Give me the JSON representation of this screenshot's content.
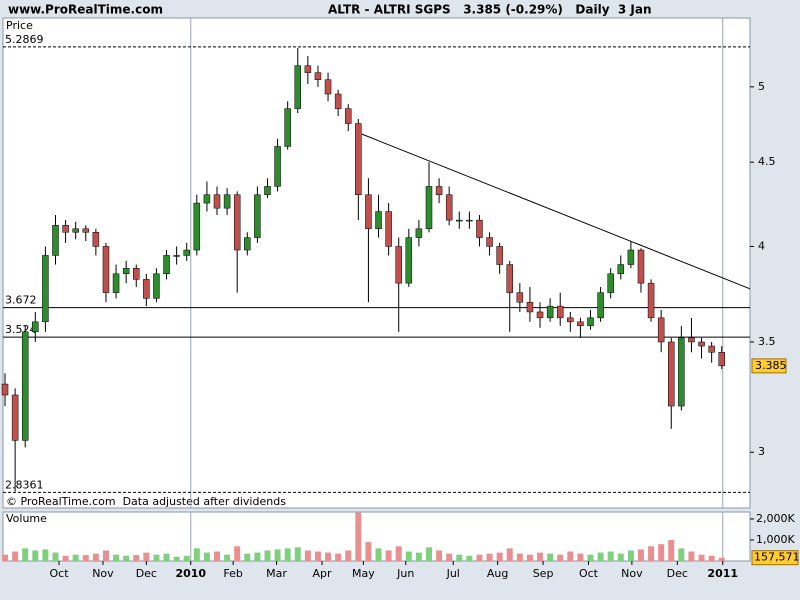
{
  "chart_data": [
    {
      "type": "candlestick",
      "source": "www.ProRealTime.com",
      "title": "ALTR - ALTRI SGPS   3.385 (-0.29%)   Daily  3 Jan",
      "y_label": "Price",
      "note": "© ProRealTime.com  Data adjusted after dividends",
      "log_scale": true,
      "xlim": [
        -0.2,
        73.8
      ],
      "ylim": [
        2.775,
        5.505
      ],
      "yticks": [
        3,
        3.5,
        4,
        4.5,
        5
      ],
      "xticks": [
        {
          "value": 5.35,
          "label": "Oct"
        },
        {
          "value": 9.7,
          "label": "Nov"
        },
        {
          "value": 14.0,
          "label": "Dec"
        },
        {
          "value": 18.4,
          "label": "2010",
          "bold": true
        },
        {
          "value": 22.6,
          "label": "Feb"
        },
        {
          "value": 26.9,
          "label": "Mar"
        },
        {
          "value": 31.4,
          "label": "Apr"
        },
        {
          "value": 35.5,
          "label": "May"
        },
        {
          "value": 39.7,
          "label": "Jun"
        },
        {
          "value": 44.4,
          "label": "Jul"
        },
        {
          "value": 48.8,
          "label": "Aug"
        },
        {
          "value": 53.3,
          "label": "Sep"
        },
        {
          "value": 57.8,
          "label": "Oct"
        },
        {
          "value": 62.1,
          "label": "Nov"
        },
        {
          "value": 66.6,
          "label": "Dec"
        },
        {
          "value": 71.1,
          "label": "2011",
          "bold": true
        }
      ],
      "up_color": "#2e8b2e",
      "down_color": "#c0504d",
      "wick_color": "#000000",
      "open": [
        3.3,
        3.25,
        3.05,
        3.55,
        3.6,
        3.95,
        4.12,
        4.08,
        4.1,
        4.08,
        4.0,
        3.75,
        3.85,
        3.88,
        3.82,
        3.72,
        3.85,
        3.95,
        3.95,
        3.98,
        4.25,
        4.3,
        4.22,
        4.3,
        3.98,
        4.05,
        4.3,
        4.35,
        4.6,
        4.85,
        5.15,
        5.1,
        5.05,
        4.95,
        4.85,
        4.75,
        4.3,
        4.1,
        4.2,
        4.0,
        3.8,
        4.05,
        4.1,
        4.35,
        4.3,
        4.15,
        4.15,
        4.15,
        4.05,
        4.0,
        3.9,
        3.75,
        3.7,
        3.65,
        3.62,
        3.68,
        3.62,
        3.6,
        3.58,
        3.62,
        3.75,
        3.85,
        3.9,
        3.98,
        3.8,
        3.62,
        3.5,
        3.2,
        3.52,
        3.5,
        3.48,
        3.45
      ],
      "high": [
        3.35,
        3.28,
        3.58,
        3.65,
        4.0,
        4.18,
        4.15,
        4.14,
        4.12,
        4.1,
        4.02,
        3.9,
        3.92,
        3.9,
        3.85,
        3.88,
        3.98,
        4.0,
        4.02,
        4.3,
        4.38,
        4.35,
        4.34,
        4.32,
        4.08,
        4.35,
        4.4,
        4.65,
        4.9,
        5.28,
        5.22,
        5.15,
        5.1,
        4.98,
        4.88,
        4.78,
        4.4,
        4.3,
        4.25,
        4.05,
        4.1,
        4.15,
        4.5,
        4.4,
        4.35,
        4.2,
        4.2,
        4.18,
        4.08,
        4.02,
        3.92,
        3.8,
        3.78,
        3.7,
        3.72,
        3.75,
        3.65,
        3.62,
        3.66,
        3.78,
        3.88,
        3.95,
        4.03,
        3.99,
        3.82,
        3.66,
        3.52,
        3.58,
        3.62,
        3.52,
        3.5,
        3.48
      ],
      "low": [
        3.2,
        2.84,
        3.02,
        3.5,
        3.55,
        3.9,
        4.02,
        4.04,
        4.03,
        3.95,
        3.7,
        3.72,
        3.8,
        3.78,
        3.68,
        3.7,
        3.82,
        3.9,
        3.92,
        3.95,
        4.2,
        4.18,
        4.18,
        3.75,
        3.95,
        4.02,
        4.28,
        4.32,
        4.58,
        4.82,
        5.02,
        5.0,
        4.9,
        4.8,
        4.7,
        4.15,
        3.7,
        4.05,
        3.95,
        3.55,
        3.78,
        4.0,
        4.08,
        4.25,
        4.12,
        4.1,
        4.1,
        4.0,
        3.95,
        3.85,
        3.55,
        3.65,
        3.6,
        3.57,
        3.6,
        3.58,
        3.55,
        3.52,
        3.56,
        3.6,
        3.72,
        3.82,
        3.88,
        3.75,
        3.6,
        3.45,
        3.1,
        3.18,
        3.45,
        3.42,
        3.4,
        3.37
      ],
      "close": [
        3.25,
        3.05,
        3.55,
        3.6,
        3.95,
        4.12,
        4.08,
        4.1,
        4.08,
        4.0,
        3.75,
        3.85,
        3.88,
        3.82,
        3.72,
        3.85,
        3.95,
        3.95,
        3.98,
        4.25,
        4.3,
        4.22,
        4.3,
        3.98,
        4.05,
        4.3,
        4.35,
        4.6,
        4.85,
        5.15,
        5.1,
        5.05,
        4.95,
        4.85,
        4.75,
        4.3,
        4.1,
        4.2,
        4.0,
        3.8,
        4.05,
        4.1,
        4.35,
        4.3,
        4.15,
        4.15,
        4.15,
        4.05,
        4.0,
        3.9,
        3.75,
        3.7,
        3.65,
        3.62,
        3.68,
        3.62,
        3.6,
        3.58,
        3.62,
        3.75,
        3.85,
        3.9,
        3.98,
        3.8,
        3.62,
        3.5,
        3.2,
        3.52,
        3.5,
        3.48,
        3.45,
        3.385
      ],
      "hlines": [
        {
          "value": 5.2869,
          "style": "dashed"
        },
        {
          "value": 3.672,
          "style": "solid"
        },
        {
          "value": 3.524,
          "style": "solid"
        },
        {
          "value": 2.8361,
          "style": "dashed"
        }
      ],
      "trendline": {
        "x": [
          35.36,
          73.8
        ],
        "y": [
          4.68,
          3.77
        ]
      },
      "last_color": "#ffcc33"
    },
    {
      "type": "bar",
      "title": "Volume",
      "title_color": "#d04040",
      "ylim": [
        0,
        2330000
      ],
      "yticks": [
        {
          "value": 1000000,
          "label": "1,000K"
        },
        {
          "value": 2000000,
          "label": "2,000K"
        }
      ],
      "up_color": "#7fcf7f",
      "down_color": "#e89090",
      "values": [
        300000,
        450000,
        600000,
        500000,
        550000,
        400000,
        250000,
        300000,
        280000,
        350000,
        500000,
        300000,
        250000,
        280000,
        400000,
        300000,
        350000,
        200000,
        250000,
        600000,
        400000,
        450000,
        300000,
        700000,
        350000,
        400000,
        500000,
        550000,
        600000,
        650000,
        500000,
        450000,
        400000,
        350000,
        500000,
        2300000,
        900000,
        600000,
        500000,
        700000,
        450000,
        400000,
        650000,
        500000,
        350000,
        300000,
        250000,
        300000,
        350000,
        400000,
        600000,
        350000,
        300000,
        400000,
        350000,
        300000,
        450000,
        350000,
        300000,
        400000,
        450000,
        350000,
        500000,
        550000,
        700000,
        800000,
        1000000,
        600000,
        450000,
        300000,
        250000,
        157571
      ],
      "last_value_label": "157,571",
      "last_color": "#ffcc33"
    }
  ]
}
